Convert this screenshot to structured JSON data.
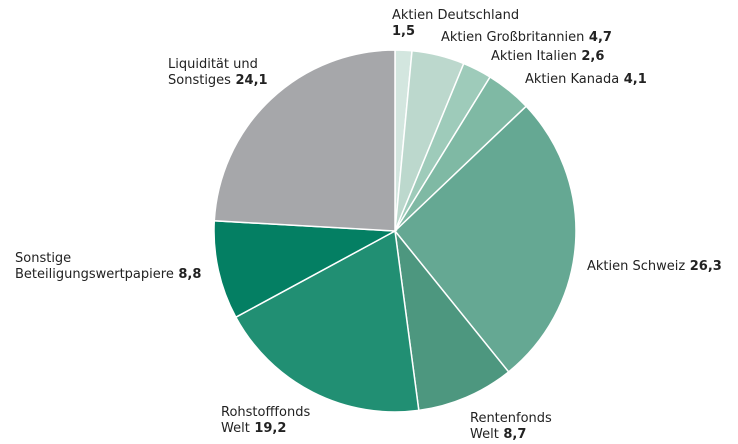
{
  "chart_data": {
    "type": "pie",
    "start": "12 o'clock, clockwise",
    "slices": [
      {
        "label_lines": [
          "Aktien Deutschland"
        ],
        "value_text": "1,5",
        "value": 1.5,
        "color": "#d3e6df"
      },
      {
        "label_lines": [
          "Aktien Großbritannien"
        ],
        "value_text": "4,7",
        "value": 4.7,
        "color": "#bcd8cd"
      },
      {
        "label_lines": [
          "Aktien Italien"
        ],
        "value_text": "2,6",
        "value": 2.6,
        "color": "#9ecbba"
      },
      {
        "label_lines": [
          "Aktien Kanada"
        ],
        "value_text": "4,1",
        "value": 4.1,
        "color": "#7fb9a4"
      },
      {
        "label_lines": [
          "Aktien Schweiz"
        ],
        "value_text": "26,3",
        "value": 26.3,
        "color": "#65a893"
      },
      {
        "label_lines": [
          "Rentenfonds",
          "Welt"
        ],
        "value_text": "8,7",
        "value": 8.7,
        "color": "#4d977f"
      },
      {
        "label_lines": [
          "Rohstofffonds",
          "Welt"
        ],
        "value_text": "19,2",
        "value": 19.2,
        "color": "#218f73"
      },
      {
        "label_lines": [
          "Sonstige",
          "Beteiligungswertpapiere"
        ],
        "value_text": "8,8",
        "value": 8.8,
        "color": "#047f63"
      },
      {
        "label_lines": [
          "Liquidität und",
          "Sonstiges"
        ],
        "value_text": "24,1",
        "value": 24.1,
        "color": "#a6a7aa"
      }
    ]
  }
}
